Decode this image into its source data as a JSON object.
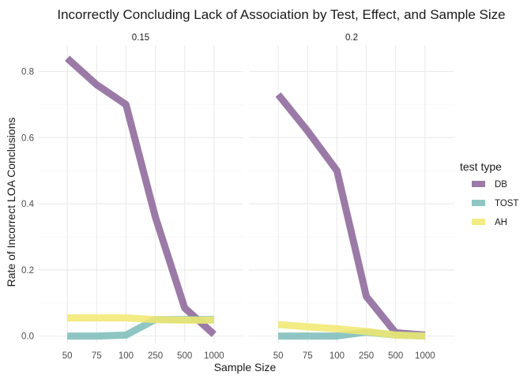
{
  "chart_data": {
    "type": "line",
    "title": "Incorrectly Concluding Lack of Association by Test, Effect, and Sample Size",
    "xlabel": "Sample Size",
    "ylabel": "Rate of Incorrect LOA Conclusions",
    "categories": [
      "50",
      "75",
      "100",
      "250",
      "500",
      "1000"
    ],
    "ylim": [
      -0.02,
      0.88
    ],
    "y_ticks": [
      "0.0",
      "0.2",
      "0.4",
      "0.6",
      "0.8"
    ],
    "grid": true,
    "legend": {
      "title": "test type",
      "placement": "right"
    },
    "panels": [
      {
        "label": "0.15",
        "series": [
          {
            "name": "DB",
            "color": "#8a6398",
            "values": [
              0.84,
              0.76,
              0.7,
              0.36,
              0.085,
              0.005
            ]
          },
          {
            "name": "TOST",
            "color": "#7bbcb8",
            "values": [
              0.0,
              0.0,
              0.003,
              0.05,
              0.05,
              0.05
            ]
          },
          {
            "name": "AH",
            "color": "#f1e86e",
            "values": [
              0.055,
              0.055,
              0.055,
              0.05,
              0.048,
              0.048
            ]
          }
        ]
      },
      {
        "label": "0.2",
        "series": [
          {
            "name": "DB",
            "color": "#8a6398",
            "values": [
              0.73,
              0.62,
              0.5,
              0.12,
              0.01,
              0.003
            ]
          },
          {
            "name": "TOST",
            "color": "#7bbcb8",
            "values": [
              0.0,
              0.0,
              0.0,
              0.012,
              0.003,
              0.0
            ]
          },
          {
            "name": "AH",
            "color": "#f1e86e",
            "values": [
              0.035,
              0.028,
              0.022,
              0.014,
              0.003,
              0.0
            ]
          }
        ]
      }
    ]
  }
}
